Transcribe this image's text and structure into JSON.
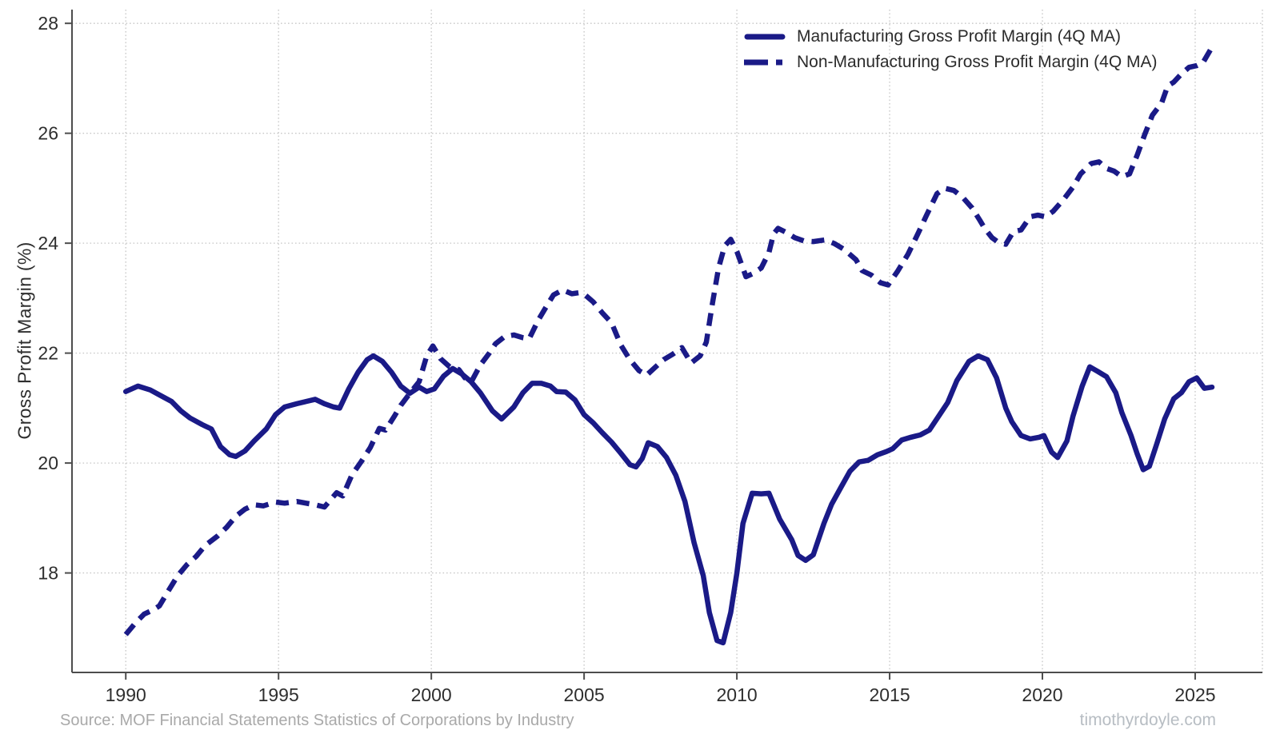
{
  "chart_data": {
    "type": "line",
    "title": "",
    "xlabel": "",
    "ylabel": "Gross Profit Margin (%)",
    "x_ticks": [
      1990,
      1995,
      2000,
      2005,
      2010,
      2015,
      2020,
      2025
    ],
    "y_ticks": [
      18,
      20,
      22,
      24,
      26,
      28
    ],
    "xlim": [
      1988.24,
      2027.2
    ],
    "ylim": [
      16.19,
      28.25
    ],
    "grid": true,
    "grid_style": "dotted",
    "legend_position": "top-right",
    "series": [
      {
        "name": "Manufacturing Gross Profit Margin (4Q MA)",
        "style": "solid",
        "color": "#1a1a87",
        "points": [
          [
            1990.0,
            21.3
          ],
          [
            1990.4,
            21.4
          ],
          [
            1990.8,
            21.33
          ],
          [
            1991.1,
            21.24
          ],
          [
            1991.5,
            21.12
          ],
          [
            1991.8,
            20.95
          ],
          [
            1992.1,
            20.82
          ],
          [
            1992.5,
            20.7
          ],
          [
            1992.8,
            20.62
          ],
          [
            1993.1,
            20.3
          ],
          [
            1993.4,
            20.15
          ],
          [
            1993.6,
            20.12
          ],
          [
            1993.9,
            20.22
          ],
          [
            1994.2,
            20.4
          ],
          [
            1994.6,
            20.62
          ],
          [
            1994.9,
            20.88
          ],
          [
            1995.2,
            21.02
          ],
          [
            1995.6,
            21.08
          ],
          [
            1995.9,
            21.12
          ],
          [
            1996.2,
            21.16
          ],
          [
            1996.5,
            21.08
          ],
          [
            1996.8,
            21.02
          ],
          [
            1997.0,
            21.0
          ],
          [
            1997.3,
            21.35
          ],
          [
            1997.6,
            21.65
          ],
          [
            1997.9,
            21.88
          ],
          [
            1998.1,
            21.95
          ],
          [
            1998.4,
            21.85
          ],
          [
            1998.7,
            21.65
          ],
          [
            1999.0,
            21.4
          ],
          [
            1999.3,
            21.27
          ],
          [
            1999.6,
            21.38
          ],
          [
            1999.85,
            21.3
          ],
          [
            2000.1,
            21.35
          ],
          [
            2000.4,
            21.58
          ],
          [
            2000.7,
            21.72
          ],
          [
            2001.0,
            21.62
          ],
          [
            2001.3,
            21.48
          ],
          [
            2001.6,
            21.28
          ],
          [
            2002.0,
            20.95
          ],
          [
            2002.3,
            20.8
          ],
          [
            2002.7,
            21.02
          ],
          [
            2003.0,
            21.28
          ],
          [
            2003.3,
            21.45
          ],
          [
            2003.6,
            21.45
          ],
          [
            2003.9,
            21.4
          ],
          [
            2004.1,
            21.3
          ],
          [
            2004.4,
            21.29
          ],
          [
            2004.7,
            21.15
          ],
          [
            2005.0,
            20.88
          ],
          [
            2005.3,
            20.73
          ],
          [
            2005.6,
            20.55
          ],
          [
            2005.9,
            20.38
          ],
          [
            2006.2,
            20.18
          ],
          [
            2006.5,
            19.97
          ],
          [
            2006.7,
            19.93
          ],
          [
            2006.9,
            20.08
          ],
          [
            2007.1,
            20.37
          ],
          [
            2007.4,
            20.3
          ],
          [
            2007.7,
            20.1
          ],
          [
            2008.0,
            19.78
          ],
          [
            2008.3,
            19.3
          ],
          [
            2008.6,
            18.55
          ],
          [
            2008.9,
            17.95
          ],
          [
            2009.1,
            17.28
          ],
          [
            2009.35,
            16.77
          ],
          [
            2009.55,
            16.73
          ],
          [
            2009.8,
            17.28
          ],
          [
            2010.0,
            18.0
          ],
          [
            2010.2,
            18.9
          ],
          [
            2010.5,
            19.45
          ],
          [
            2010.8,
            19.44
          ],
          [
            2011.05,
            19.45
          ],
          [
            2011.4,
            18.98
          ],
          [
            2011.8,
            18.6
          ],
          [
            2012.0,
            18.32
          ],
          [
            2012.25,
            18.23
          ],
          [
            2012.5,
            18.33
          ],
          [
            2012.85,
            18.9
          ],
          [
            2013.1,
            19.25
          ],
          [
            2013.4,
            19.55
          ],
          [
            2013.7,
            19.85
          ],
          [
            2014.0,
            20.02
          ],
          [
            2014.3,
            20.05
          ],
          [
            2014.6,
            20.15
          ],
          [
            2014.9,
            20.21
          ],
          [
            2015.1,
            20.26
          ],
          [
            2015.4,
            20.42
          ],
          [
            2015.7,
            20.47
          ],
          [
            2016.0,
            20.51
          ],
          [
            2016.3,
            20.6
          ],
          [
            2016.6,
            20.85
          ],
          [
            2016.9,
            21.1
          ],
          [
            2017.2,
            21.5
          ],
          [
            2017.6,
            21.85
          ],
          [
            2017.9,
            21.95
          ],
          [
            2018.2,
            21.88
          ],
          [
            2018.5,
            21.55
          ],
          [
            2018.8,
            21.0
          ],
          [
            2019.0,
            20.75
          ],
          [
            2019.3,
            20.5
          ],
          [
            2019.6,
            20.44
          ],
          [
            2019.9,
            20.47
          ],
          [
            2020.05,
            20.5
          ],
          [
            2020.3,
            20.2
          ],
          [
            2020.5,
            20.1
          ],
          [
            2020.8,
            20.4
          ],
          [
            2021.0,
            20.85
          ],
          [
            2021.3,
            21.4
          ],
          [
            2021.55,
            21.75
          ],
          [
            2021.8,
            21.67
          ],
          [
            2022.1,
            21.57
          ],
          [
            2022.4,
            21.28
          ],
          [
            2022.6,
            20.92
          ],
          [
            2022.9,
            20.5
          ],
          [
            2023.1,
            20.17
          ],
          [
            2023.3,
            19.88
          ],
          [
            2023.5,
            19.94
          ],
          [
            2023.75,
            20.36
          ],
          [
            2024.0,
            20.8
          ],
          [
            2024.3,
            21.17
          ],
          [
            2024.55,
            21.28
          ],
          [
            2024.8,
            21.48
          ],
          [
            2025.05,
            21.55
          ],
          [
            2025.3,
            21.36
          ],
          [
            2025.55,
            21.38
          ]
        ]
      },
      {
        "name": "Non-Manufacturing Gross Profit Margin (4Q MA)",
        "style": "dashed",
        "color": "#1a1a87",
        "points": [
          [
            1990.0,
            16.88
          ],
          [
            1990.3,
            17.08
          ],
          [
            1990.6,
            17.25
          ],
          [
            1990.9,
            17.33
          ],
          [
            1991.1,
            17.4
          ],
          [
            1991.4,
            17.68
          ],
          [
            1991.7,
            17.95
          ],
          [
            1992.0,
            18.15
          ],
          [
            1992.3,
            18.3
          ],
          [
            1992.6,
            18.5
          ],
          [
            1993.0,
            18.67
          ],
          [
            1993.3,
            18.83
          ],
          [
            1993.6,
            19.03
          ],
          [
            1993.9,
            19.16
          ],
          [
            1994.2,
            19.24
          ],
          [
            1994.5,
            19.22
          ],
          [
            1994.9,
            19.29
          ],
          [
            1995.2,
            19.27
          ],
          [
            1995.6,
            19.3
          ],
          [
            1995.9,
            19.27
          ],
          [
            1996.2,
            19.24
          ],
          [
            1996.5,
            19.2
          ],
          [
            1996.9,
            19.46
          ],
          [
            1997.1,
            19.4
          ],
          [
            1997.4,
            19.78
          ],
          [
            1997.7,
            20.02
          ],
          [
            1998.0,
            20.28
          ],
          [
            1998.3,
            20.63
          ],
          [
            1998.5,
            20.6
          ],
          [
            1998.8,
            20.86
          ],
          [
            1999.0,
            21.05
          ],
          [
            1999.3,
            21.27
          ],
          [
            1999.6,
            21.48
          ],
          [
            1999.85,
            21.95
          ],
          [
            2000.05,
            22.13
          ],
          [
            2000.3,
            21.9
          ],
          [
            2000.6,
            21.75
          ],
          [
            2000.9,
            21.7
          ],
          [
            2001.1,
            21.55
          ],
          [
            2001.3,
            21.47
          ],
          [
            2001.6,
            21.78
          ],
          [
            2001.9,
            22.0
          ],
          [
            2002.1,
            22.17
          ],
          [
            2002.4,
            22.3
          ],
          [
            2002.7,
            22.33
          ],
          [
            2003.0,
            22.28
          ],
          [
            2003.2,
            22.26
          ],
          [
            2003.5,
            22.6
          ],
          [
            2003.8,
            22.88
          ],
          [
            2004.0,
            23.06
          ],
          [
            2004.3,
            23.15
          ],
          [
            2004.6,
            23.08
          ],
          [
            2004.85,
            23.1
          ],
          [
            2005.05,
            23.05
          ],
          [
            2005.3,
            22.93
          ],
          [
            2005.6,
            22.73
          ],
          [
            2005.9,
            22.55
          ],
          [
            2006.2,
            22.15
          ],
          [
            2006.5,
            21.88
          ],
          [
            2006.8,
            21.68
          ],
          [
            2007.05,
            21.6
          ],
          [
            2007.3,
            21.73
          ],
          [
            2007.6,
            21.88
          ],
          [
            2007.9,
            21.98
          ],
          [
            2008.2,
            22.1
          ],
          [
            2008.5,
            21.82
          ],
          [
            2008.8,
            21.95
          ],
          [
            2009.0,
            22.2
          ],
          [
            2009.2,
            22.9
          ],
          [
            2009.4,
            23.55
          ],
          [
            2009.6,
            23.95
          ],
          [
            2009.8,
            24.07
          ],
          [
            2010.0,
            23.85
          ],
          [
            2010.3,
            23.39
          ],
          [
            2010.5,
            23.44
          ],
          [
            2010.8,
            23.55
          ],
          [
            2011.05,
            23.83
          ],
          [
            2011.2,
            24.17
          ],
          [
            2011.35,
            24.27
          ],
          [
            2011.6,
            24.2
          ],
          [
            2011.9,
            24.1
          ],
          [
            2012.2,
            24.04
          ],
          [
            2012.5,
            24.03
          ],
          [
            2012.9,
            24.06
          ],
          [
            2013.2,
            23.99
          ],
          [
            2013.5,
            23.89
          ],
          [
            2013.9,
            23.7
          ],
          [
            2014.1,
            23.5
          ],
          [
            2014.4,
            23.42
          ],
          [
            2014.7,
            23.28
          ],
          [
            2014.95,
            23.24
          ],
          [
            2015.25,
            23.48
          ],
          [
            2015.6,
            23.8
          ],
          [
            2015.95,
            24.2
          ],
          [
            2016.2,
            24.5
          ],
          [
            2016.55,
            24.9
          ],
          [
            2016.8,
            25.0
          ],
          [
            2017.1,
            24.96
          ],
          [
            2017.4,
            24.83
          ],
          [
            2017.7,
            24.64
          ],
          [
            2017.95,
            24.42
          ],
          [
            2018.1,
            24.28
          ],
          [
            2018.35,
            24.1
          ],
          [
            2018.55,
            24.02
          ],
          [
            2018.8,
            23.98
          ],
          [
            2019.05,
            24.21
          ],
          [
            2019.3,
            24.24
          ],
          [
            2019.6,
            24.48
          ],
          [
            2019.85,
            24.51
          ],
          [
            2020.1,
            24.48
          ],
          [
            2020.35,
            24.58
          ],
          [
            2020.7,
            24.8
          ],
          [
            2021.0,
            25.02
          ],
          [
            2021.25,
            25.26
          ],
          [
            2021.6,
            25.45
          ],
          [
            2021.85,
            25.48
          ],
          [
            2022.1,
            25.36
          ],
          [
            2022.35,
            25.31
          ],
          [
            2022.6,
            25.21
          ],
          [
            2022.85,
            25.26
          ],
          [
            2023.1,
            25.6
          ],
          [
            2023.35,
            25.98
          ],
          [
            2023.6,
            26.33
          ],
          [
            2023.9,
            26.55
          ],
          [
            2024.1,
            26.86
          ],
          [
            2024.3,
            26.93
          ],
          [
            2024.55,
            27.08
          ],
          [
            2024.8,
            27.2
          ],
          [
            2025.05,
            27.23
          ],
          [
            2025.25,
            27.28
          ],
          [
            2025.5,
            27.52
          ]
        ]
      }
    ]
  },
  "legend": {
    "items": [
      {
        "label": "Manufacturing Gross Profit Margin (4Q MA)",
        "swatch": "solid-line"
      },
      {
        "label": "Non-Manufacturing Gross Profit Margin (4Q MA)",
        "swatch": "dashed-line"
      }
    ]
  },
  "footer": {
    "source": "Source: MOF Financial Statements Statistics of Corporations by Industry",
    "watermark": "timothyrdoyle.com"
  },
  "colors": {
    "line": "#1a1a87",
    "grid": "#c7c7c7",
    "spine": "#4d4d4d",
    "tick_label": "#2e2e2e",
    "source_text": "#a9a9a9",
    "watermark_text": "#b7bdc3"
  }
}
